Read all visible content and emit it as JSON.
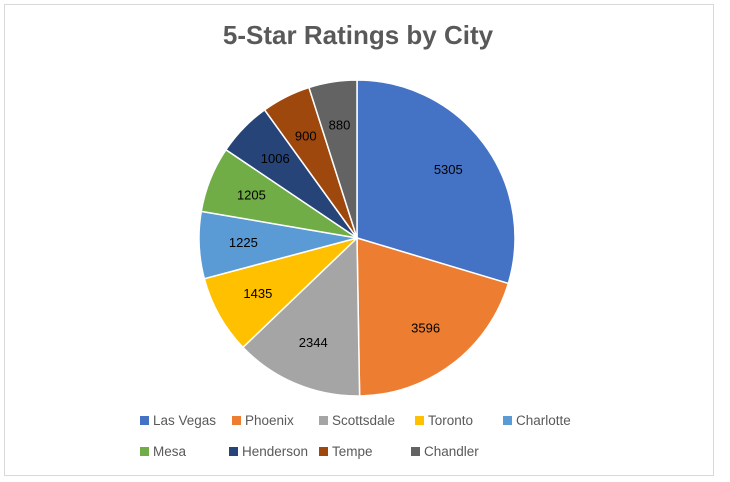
{
  "chart_data": {
    "type": "pie",
    "title": "5-Star Ratings by City",
    "categories": [
      "Las Vegas",
      "Phoenix",
      "Scottsdale",
      "Toronto",
      "Charlotte",
      "Mesa",
      "Henderson",
      "Tempe",
      "Chandler"
    ],
    "values": [
      5305,
      3596,
      2344,
      1435,
      1225,
      1205,
      1006,
      900,
      880
    ],
    "colors": [
      "#4472c4",
      "#ed7d31",
      "#a5a5a5",
      "#ffc000",
      "#5b9bd5",
      "#70ad47",
      "#264478",
      "#9e480e",
      "#636363"
    ],
    "legend_position": "bottom",
    "data_labels": true
  }
}
